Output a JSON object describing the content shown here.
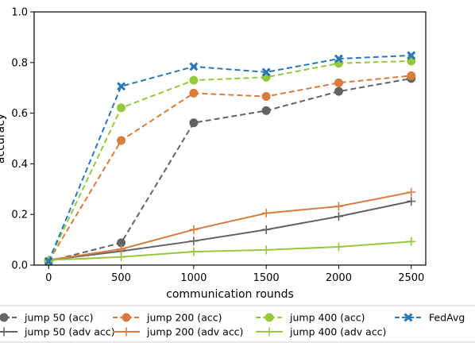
{
  "chart_data": {
    "type": "line",
    "xlabel": "communication rounds",
    "ylabel": "accuracy",
    "xlim": [
      -100,
      2600
    ],
    "ylim": [
      0.0,
      1.0
    ],
    "x": [
      0,
      500,
      1000,
      1500,
      2000,
      2500
    ],
    "xticks": [
      "0",
      "500",
      "1000",
      "1500",
      "2000",
      "2500"
    ],
    "yticks": [
      "0.0",
      "0.2",
      "0.4",
      "0.6",
      "0.8",
      "1.0"
    ],
    "legend_position": "bottom",
    "series": [
      {
        "name": "jump 50 (acc)",
        "color": "#636363",
        "dash": "dashed",
        "marker": "circle",
        "values": [
          0.015,
          0.088,
          0.562,
          0.61,
          0.686,
          0.737
        ]
      },
      {
        "name": "jump 50 (adv acc)",
        "color": "#636363",
        "dash": "solid",
        "marker": "plus",
        "values": [
          0.02,
          0.055,
          0.095,
          0.14,
          0.192,
          0.252
        ]
      },
      {
        "name": "jump 200 (acc)",
        "color": "#d97c3f",
        "dash": "dashed",
        "marker": "circle",
        "values": [
          0.015,
          0.492,
          0.679,
          0.666,
          0.72,
          0.748
        ]
      },
      {
        "name": "jump 200 (adv acc)",
        "color": "#d97c3f",
        "dash": "solid",
        "marker": "plus",
        "values": [
          0.02,
          0.063,
          0.14,
          0.205,
          0.232,
          0.288
        ]
      },
      {
        "name": "jump 400 (acc)",
        "color": "#94c93d",
        "dash": "dashed",
        "marker": "circle",
        "values": [
          0.015,
          0.621,
          0.73,
          0.742,
          0.797,
          0.806
        ]
      },
      {
        "name": "jump 400 (adv acc)",
        "color": "#94c93d",
        "dash": "solid",
        "marker": "plus",
        "values": [
          0.02,
          0.032,
          0.053,
          0.06,
          0.072,
          0.093
        ]
      },
      {
        "name": "FedAvg",
        "color": "#2b78b5",
        "dash": "dashed",
        "marker": "x",
        "values": [
          0.015,
          0.706,
          0.784,
          0.762,
          0.815,
          0.828
        ]
      }
    ]
  }
}
